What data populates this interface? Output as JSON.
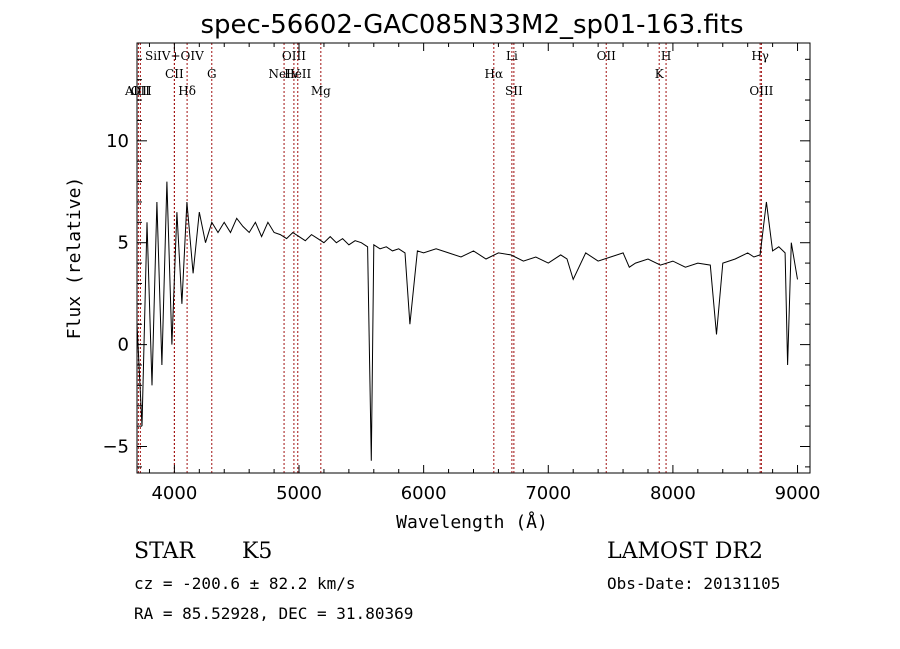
{
  "chart_data": {
    "type": "line",
    "title": "spec-56602-GAC085N33M2_sp01-163.fits",
    "xlabel": "Wavelength (Å)",
    "ylabel": "Flux (relative)",
    "xlim": [
      3700,
      9100
    ],
    "ylim": [
      -6.3,
      14.8
    ],
    "xticks": [
      4000,
      5000,
      6000,
      7000,
      8000,
      9000
    ],
    "yticks": [
      -5,
      0,
      5,
      10
    ],
    "series": [
      {
        "x": [
          3700,
          3740,
          3780,
          3820,
          3860,
          3900,
          3940,
          3980,
          4020,
          4060,
          4100,
          4150,
          4200,
          4250,
          4300,
          4350,
          4400,
          4450,
          4500,
          4550,
          4600,
          4650,
          4700,
          4750,
          4800,
          4850,
          4900,
          4950,
          5000,
          5050,
          5100,
          5150,
          5200,
          5250,
          5300,
          5350,
          5400,
          5450,
          5500,
          5550,
          5580,
          5600,
          5650,
          5700,
          5750,
          5800,
          5850,
          5890,
          5950,
          6000,
          6100,
          6200,
          6300,
          6400,
          6500,
          6600,
          6700,
          6800,
          6900,
          7000,
          7100,
          7150,
          7200,
          7300,
          7400,
          7500,
          7600,
          7650,
          7700,
          7800,
          7900,
          8000,
          8100,
          8200,
          8300,
          8350,
          8400,
          8500,
          8600,
          8650,
          8700,
          8750,
          8800,
          8850,
          8900,
          8920,
          8950,
          9000
        ],
        "y": [
          1.0,
          -4.0,
          6.0,
          -2.0,
          7.0,
          -1.0,
          8.0,
          0.0,
          6.5,
          2.0,
          7.0,
          3.5,
          6.5,
          5.0,
          6.0,
          5.5,
          6.0,
          5.5,
          6.2,
          5.8,
          5.5,
          6.0,
          5.3,
          6.0,
          5.5,
          5.4,
          5.2,
          5.5,
          5.3,
          5.1,
          5.4,
          5.2,
          5.0,
          5.3,
          5.0,
          5.2,
          4.9,
          5.1,
          5.0,
          4.8,
          -5.7,
          4.9,
          4.7,
          4.8,
          4.6,
          4.7,
          4.5,
          1.0,
          4.6,
          4.5,
          4.7,
          4.5,
          4.3,
          4.6,
          4.2,
          4.5,
          4.4,
          4.1,
          4.3,
          4.0,
          4.4,
          4.2,
          3.2,
          4.5,
          4.1,
          4.3,
          4.5,
          3.8,
          4.0,
          4.2,
          3.9,
          4.1,
          3.8,
          4.0,
          3.9,
          0.5,
          4.0,
          4.2,
          4.5,
          4.3,
          4.4,
          7.0,
          4.6,
          4.8,
          4.5,
          -1.0,
          5.0,
          3.2
        ]
      }
    ],
    "lines": [
      {
        "label": "AlIII",
        "x": 3711,
        "row": 2
      },
      {
        "label": "OII",
        "x": 3727,
        "row": 2
      },
      {
        "label": "SiIV+OIV",
        "x": 4000,
        "row": 0
      },
      {
        "label": "CII",
        "x": 4000,
        "row": 1
      },
      {
        "label": "Hδ",
        "x": 4102,
        "row": 2
      },
      {
        "label": "G",
        "x": 4300,
        "row": 1
      },
      {
        "label": "NeIV",
        "x": 4880,
        "row": 1
      },
      {
        "label": "OIII",
        "x": 4959,
        "row": 0
      },
      {
        "label": "HeII",
        "x": 4990,
        "row": 1
      },
      {
        "label": "Mg",
        "x": 5175,
        "row": 2
      },
      {
        "label": "Hα",
        "x": 6563,
        "row": 1
      },
      {
        "label": "Li",
        "x": 6708,
        "row": 0
      },
      {
        "label": "SII",
        "x": 6724,
        "row": 2
      },
      {
        "label": "OII",
        "x": 7465,
        "row": 0
      },
      {
        "label": "K",
        "x": 7890,
        "row": 1
      },
      {
        "label": "H",
        "x": 7945,
        "row": 0
      },
      {
        "label": "Hγ",
        "x": 8700,
        "row": 0
      },
      {
        "label": "OIII",
        "x": 8710,
        "row": 2
      }
    ]
  },
  "info": {
    "class": "STAR",
    "subclass": "K5",
    "survey": "LAMOST DR2",
    "cz": "cz = -200.6 ± 82.2 km/s",
    "obsdate": "Obs-Date: 20131105",
    "coords": "RA =  85.52928, DEC =  31.80369"
  }
}
